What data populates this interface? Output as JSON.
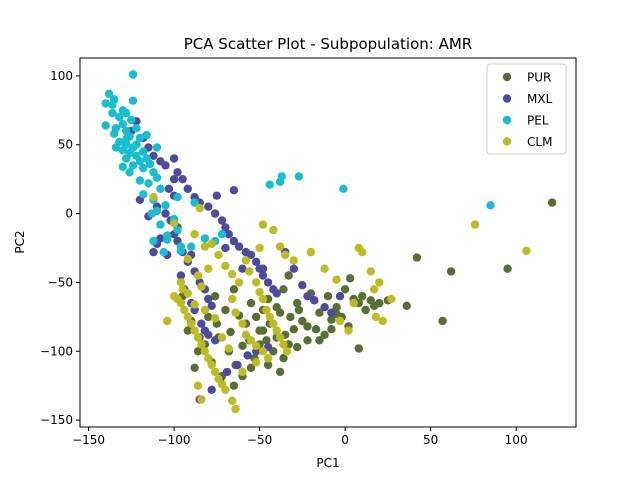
{
  "chart_data": {
    "type": "scatter",
    "title": "PCA Scatter Plot - Subpopulation: AMR",
    "xlabel": "PC1",
    "ylabel": "PC2",
    "xlim": [
      -155,
      135
    ],
    "ylim": [
      -155,
      113
    ],
    "xticks": [
      -150,
      -100,
      -50,
      0,
      50,
      100
    ],
    "yticks": [
      -150,
      -100,
      -50,
      0,
      50,
      100
    ],
    "grid": false,
    "legend_position": "top-right",
    "series": [
      {
        "name": "PUR",
        "color": "#5a6e34",
        "points": [
          [
            121,
            8
          ],
          [
            95,
            -40
          ],
          [
            62,
            -42
          ],
          [
            57,
            -78
          ],
          [
            42,
            -32
          ],
          [
            36,
            -67
          ],
          [
            25,
            -63
          ],
          [
            20,
            -65
          ],
          [
            17,
            -67
          ],
          [
            15,
            -63
          ],
          [
            12,
            -70
          ],
          [
            10,
            -60
          ],
          [
            8,
            -65
          ],
          [
            5,
            -62
          ],
          [
            3,
            -47
          ],
          [
            0,
            -55
          ],
          [
            2,
            -82
          ],
          [
            -2,
            -75
          ],
          [
            -5,
            -73
          ],
          [
            -8,
            -84
          ],
          [
            -10,
            -60
          ],
          [
            -12,
            -88
          ],
          [
            -15,
            -72
          ],
          [
            -17,
            -84
          ],
          [
            -18,
            -63
          ],
          [
            -20,
            -58
          ],
          [
            -22,
            -92
          ],
          [
            -25,
            -78
          ],
          [
            -27,
            -70
          ],
          [
            -28,
            -65
          ],
          [
            -30,
            -84
          ],
          [
            -32,
            -75
          ],
          [
            -33,
            -95
          ],
          [
            -35,
            -88
          ],
          [
            -36,
            -55
          ],
          [
            -38,
            -72
          ],
          [
            -40,
            -68
          ],
          [
            -42,
            -100
          ],
          [
            -44,
            -80
          ],
          [
            -45,
            -62
          ],
          [
            -46,
            -92
          ],
          [
            -48,
            -70
          ],
          [
            -50,
            -85
          ],
          [
            -52,
            -75
          ],
          [
            -53,
            -105
          ],
          [
            -55,
            -65
          ],
          [
            -56,
            -92
          ],
          [
            -58,
            -80
          ],
          [
            -60,
            -96
          ],
          [
            -62,
            -74
          ],
          [
            -64,
            -110
          ],
          [
            -65,
            -55
          ],
          [
            -67,
            -86
          ],
          [
            -68,
            -100
          ],
          [
            -70,
            -70
          ],
          [
            -72,
            -118
          ],
          [
            -74,
            -90
          ],
          [
            -75,
            -80
          ],
          [
            -76,
            -60
          ],
          [
            -78,
            -108
          ],
          [
            -80,
            -75
          ],
          [
            -82,
            -95
          ],
          [
            -85,
            -90
          ],
          [
            -86,
            -100
          ],
          [
            -88,
            -112
          ],
          [
            -90,
            -78
          ],
          [
            -92,
            -85
          ],
          [
            -95,
            -60
          ],
          [
            -33,
            -45
          ],
          [
            -36,
            -105
          ],
          [
            -38,
            -115
          ],
          [
            -40,
            -90
          ],
          [
            -45,
            -110
          ],
          [
            -48,
            -85
          ],
          [
            -55,
            -112
          ],
          [
            -60,
            -118
          ],
          [
            -65,
            -125
          ],
          [
            -50,
            -95
          ],
          [
            -28,
            -97
          ],
          [
            -22,
            -82
          ],
          [
            -15,
            -92
          ],
          [
            -8,
            -77
          ],
          [
            -5,
            -68
          ],
          [
            8,
            -98
          ]
        ]
      },
      {
        "name": "MXL",
        "color": "#4e4a9e",
        "points": [
          [
            -122,
            67
          ],
          [
            -125,
            60
          ],
          [
            -118,
            55
          ],
          [
            -115,
            48
          ],
          [
            -112,
            42
          ],
          [
            -108,
            38
          ],
          [
            -105,
            35
          ],
          [
            -100,
            40
          ],
          [
            -98,
            30
          ],
          [
            -95,
            25
          ],
          [
            -92,
            18
          ],
          [
            -88,
            12
          ],
          [
            -85,
            8
          ],
          [
            -80,
            5
          ],
          [
            -76,
            0
          ],
          [
            -72,
            -5
          ],
          [
            -70,
            -10
          ],
          [
            -68,
            -15
          ],
          [
            -65,
            -20
          ],
          [
            -62,
            -24
          ],
          [
            -58,
            -28
          ],
          [
            -55,
            -30
          ],
          [
            -52,
            -35
          ],
          [
            -50,
            -40
          ],
          [
            -48,
            -45
          ],
          [
            -45,
            -50
          ],
          [
            -42,
            -55
          ],
          [
            -40,
            -58
          ],
          [
            -100,
            -15
          ],
          [
            -98,
            -20
          ],
          [
            -95,
            -28
          ],
          [
            -92,
            -35
          ],
          [
            -90,
            -30
          ],
          [
            -88,
            -42
          ],
          [
            -85,
            -50
          ],
          [
            -82,
            -55
          ],
          [
            -80,
            -62
          ],
          [
            -78,
            -67
          ],
          [
            -98,
            -10
          ],
          [
            -102,
            -5
          ],
          [
            -105,
            0
          ],
          [
            -108,
            -18
          ],
          [
            -110,
            -22
          ],
          [
            -112,
            -28
          ],
          [
            -104,
            -30
          ],
          [
            -96,
            -45
          ],
          [
            -94,
            -55
          ],
          [
            -90,
            -65
          ],
          [
            -88,
            -70
          ],
          [
            -84,
            -80
          ],
          [
            -82,
            -85
          ],
          [
            -80,
            -88
          ],
          [
            -76,
            -92
          ],
          [
            -100,
            25
          ],
          [
            -103,
            18
          ],
          [
            -110,
            5
          ],
          [
            -115,
            -2
          ],
          [
            -120,
            10
          ],
          [
            -85,
            -135
          ],
          [
            -78,
            -128
          ],
          [
            -73,
            -120
          ],
          [
            -69,
            -115
          ],
          [
            -63,
            -110
          ],
          [
            -57,
            -103
          ],
          [
            -52,
            -100
          ],
          [
            -45,
            -97
          ],
          [
            -48,
            -40
          ],
          [
            -35,
            -28
          ],
          [
            -30,
            -40
          ],
          [
            -25,
            -52
          ],
          [
            -22,
            -60
          ],
          [
            -18,
            -63
          ],
          [
            -12,
            -68
          ],
          [
            -8,
            -72
          ],
          [
            -3,
            -60
          ],
          [
            -70,
            -25
          ],
          [
            -60,
            -40
          ],
          [
            -65,
            17
          ],
          [
            -75,
            13
          ],
          [
            -100,
            13
          ]
        ]
      },
      {
        "name": "PEL",
        "color": "#17becf",
        "points": [
          [
            -124,
            101
          ],
          [
            -138,
            87
          ],
          [
            -135,
            83
          ],
          [
            -140,
            80
          ],
          [
            -130,
            75
          ],
          [
            -128,
            73
          ],
          [
            -136,
            73
          ],
          [
            -132,
            70
          ],
          [
            -125,
            68
          ],
          [
            -130,
            65
          ],
          [
            -122,
            62
          ],
          [
            -128,
            60
          ],
          [
            -135,
            58
          ],
          [
            -126,
            56
          ],
          [
            -120,
            55
          ],
          [
            -132,
            52
          ],
          [
            -128,
            50
          ],
          [
            -124,
            48
          ],
          [
            -130,
            46
          ],
          [
            -118,
            45
          ],
          [
            -126,
            44
          ],
          [
            -122,
            42
          ],
          [
            -116,
            40
          ],
          [
            -128,
            40
          ],
          [
            -120,
            38
          ],
          [
            -114,
            36
          ],
          [
            -124,
            35
          ],
          [
            -118,
            33
          ],
          [
            -112,
            30
          ],
          [
            -126,
            30
          ],
          [
            -110,
            26
          ],
          [
            -115,
            22
          ],
          [
            -108,
            18
          ],
          [
            -118,
            14
          ],
          [
            -112,
            10
          ],
          [
            -105,
            6
          ],
          [
            -110,
            2
          ],
          [
            -100,
            -4
          ],
          [
            -108,
            -8
          ],
          [
            -98,
            -12
          ],
          [
            -104,
            -16
          ],
          [
            -112,
            -20
          ],
          [
            -96,
            -24
          ],
          [
            -106,
            -28
          ],
          [
            -124,
            82
          ],
          [
            -134,
            62
          ],
          [
            -128,
            54
          ],
          [
            -122,
            50
          ],
          [
            -116,
            57
          ],
          [
            -110,
            48
          ],
          [
            -120,
            24
          ],
          [
            -113,
            0
          ],
          [
            -104,
            -19
          ],
          [
            -96,
            -27
          ],
          [
            -90,
            -24
          ],
          [
            -82,
            -18
          ],
          [
            -76,
            -20
          ],
          [
            -72,
            -15
          ],
          [
            -88,
            8
          ],
          [
            -98,
            12
          ],
          [
            -37,
            27
          ],
          [
            -44,
            21
          ],
          [
            -27,
            27
          ],
          [
            -38,
            23
          ],
          [
            -1,
            18
          ],
          [
            85,
            6
          ],
          [
            -140,
            64
          ],
          [
            -136,
            79
          ],
          [
            -134,
            48
          ],
          [
            -130,
            34
          ]
        ]
      },
      {
        "name": "CLM",
        "color": "#bcbd22",
        "points": [
          [
            -112,
            12
          ],
          [
            -100,
            -7
          ],
          [
            -85,
            4
          ],
          [
            -88,
            -15
          ],
          [
            -82,
            -24
          ],
          [
            -78,
            -22
          ],
          [
            -92,
            -33
          ],
          [
            -86,
            -45
          ],
          [
            -84,
            -53
          ],
          [
            -80,
            -40
          ],
          [
            -74,
            -30
          ],
          [
            -70,
            -38
          ],
          [
            -66,
            -44
          ],
          [
            -62,
            -50
          ],
          [
            -58,
            -34
          ],
          [
            -56,
            -42
          ],
          [
            -52,
            -50
          ],
          [
            -50,
            -57
          ],
          [
            -48,
            -62
          ],
          [
            -46,
            -70
          ],
          [
            -44,
            -75
          ],
          [
            -42,
            -80
          ],
          [
            -40,
            -85
          ],
          [
            -38,
            -90
          ],
          [
            -36,
            -95
          ],
          [
            -34,
            -100
          ],
          [
            -100,
            -60
          ],
          [
            -96,
            -65
          ],
          [
            -94,
            -70
          ],
          [
            -92,
            -75
          ],
          [
            -90,
            -80
          ],
          [
            -88,
            -85
          ],
          [
            -86,
            -90
          ],
          [
            -84,
            -95
          ],
          [
            -82,
            -100
          ],
          [
            -80,
            -105
          ],
          [
            -78,
            -110
          ],
          [
            -76,
            -115
          ],
          [
            -74,
            -120
          ],
          [
            -72,
            -124
          ],
          [
            -70,
            -128
          ],
          [
            -66,
            -136
          ],
          [
            -64,
            -142
          ],
          [
            -86,
            -125
          ],
          [
            -84,
            -135
          ],
          [
            -104,
            -78
          ],
          [
            -98,
            -62
          ],
          [
            -96,
            -50
          ],
          [
            -60,
            -80
          ],
          [
            -58,
            -88
          ],
          [
            -55,
            -92
          ],
          [
            -52,
            -96
          ],
          [
            -48,
            -100
          ],
          [
            -45,
            -105
          ],
          [
            -50,
            -25
          ],
          [
            -48,
            -8
          ],
          [
            -42,
            -12
          ],
          [
            -38,
            -24
          ],
          [
            -35,
            -30
          ],
          [
            -30,
            -34
          ],
          [
            -20,
            -28
          ],
          [
            -12,
            -40
          ],
          [
            -5,
            -48
          ],
          [
            -3,
            -78
          ],
          [
            2,
            -85
          ],
          [
            5,
            -65
          ],
          [
            8,
            -25
          ],
          [
            10,
            -28
          ],
          [
            15,
            -42
          ],
          [
            17,
            -55
          ],
          [
            18,
            -75
          ],
          [
            20,
            -50
          ],
          [
            22,
            -78
          ],
          [
            27,
            -62
          ],
          [
            76,
            -8
          ],
          [
            106,
            -27
          ],
          [
            -52,
            -108
          ],
          [
            -60,
            -115
          ],
          [
            -68,
            -98
          ],
          [
            -72,
            -90
          ],
          [
            -76,
            -76
          ],
          [
            -82,
            -70
          ],
          [
            -88,
            -66
          ],
          [
            -92,
            -58
          ],
          [
            -95,
            -55
          ],
          [
            -66,
            -62
          ],
          [
            -64,
            -72
          ]
        ]
      }
    ]
  }
}
